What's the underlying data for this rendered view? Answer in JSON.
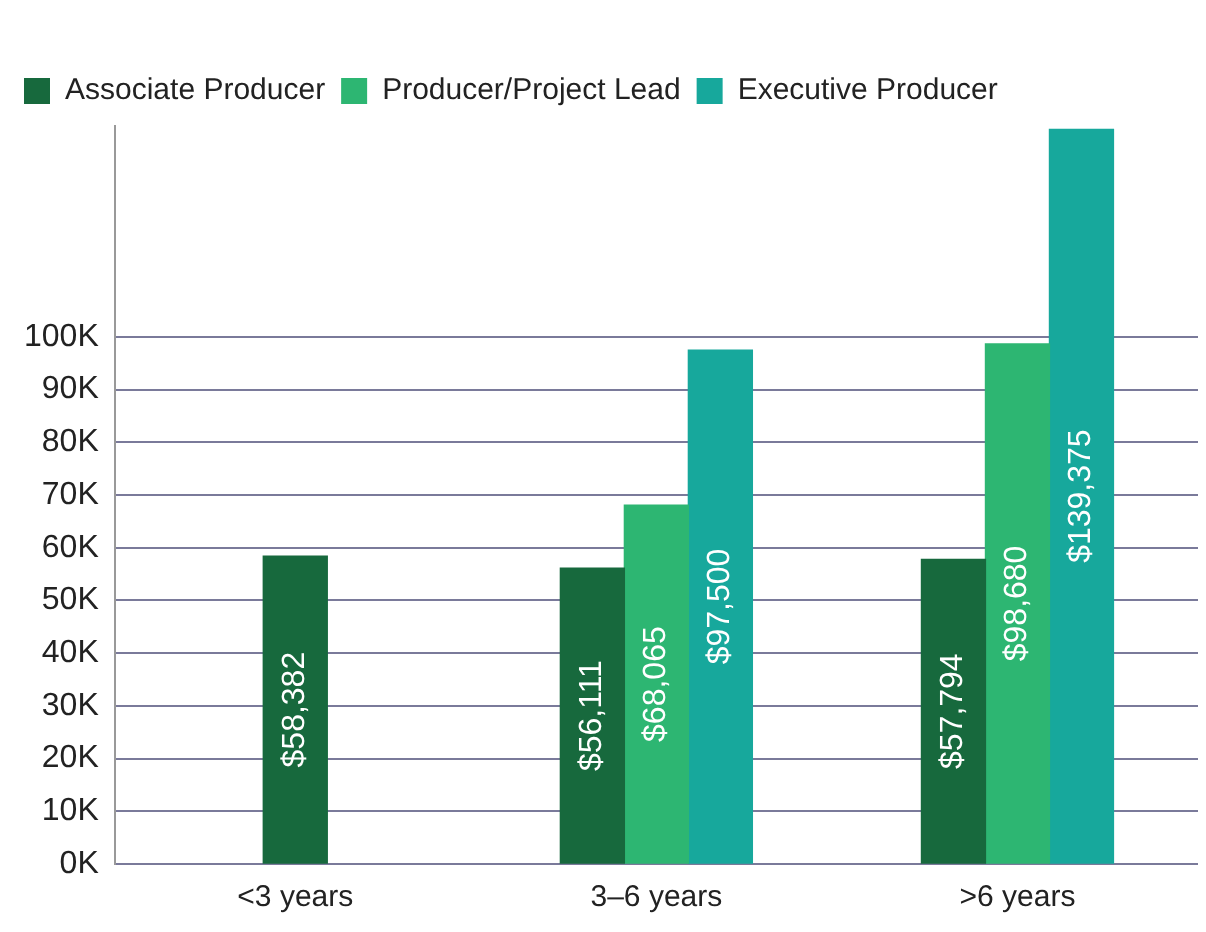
{
  "chart_data": {
    "type": "bar",
    "categories": [
      "<3 years",
      "3–6 years",
      ">6 years"
    ],
    "series": [
      {
        "name": "Associate Producer",
        "color": "#17693d",
        "values": [
          58382,
          56111,
          57794
        ],
        "value_labels": [
          "$58,382",
          "$56,111",
          "$57,794"
        ]
      },
      {
        "name": "Producer/Project Lead",
        "color": "#2db672",
        "values": [
          null,
          68065,
          98680
        ],
        "value_labels": [
          null,
          "$68,065",
          "$98,680"
        ]
      },
      {
        "name": "Executive Producer",
        "color": "#17a89c",
        "values": [
          null,
          97500,
          139375
        ],
        "value_labels": [
          null,
          "$97,500",
          "$139,375"
        ]
      }
    ],
    "ylim": [
      0,
      140000
    ],
    "yticks": [
      {
        "value": 0,
        "label": "0K"
      },
      {
        "value": 10000,
        "label": "10K"
      },
      {
        "value": 20000,
        "label": "20K"
      },
      {
        "value": 30000,
        "label": "30K"
      },
      {
        "value": 40000,
        "label": "40K"
      },
      {
        "value": 50000,
        "label": "50K"
      },
      {
        "value": 60000,
        "label": "60K"
      },
      {
        "value": 70000,
        "label": "70K"
      },
      {
        "value": 80000,
        "label": "80K"
      },
      {
        "value": 90000,
        "label": "90K"
      },
      {
        "value": 100000,
        "label": "100K"
      }
    ],
    "grid": "y",
    "legend": "top left"
  }
}
